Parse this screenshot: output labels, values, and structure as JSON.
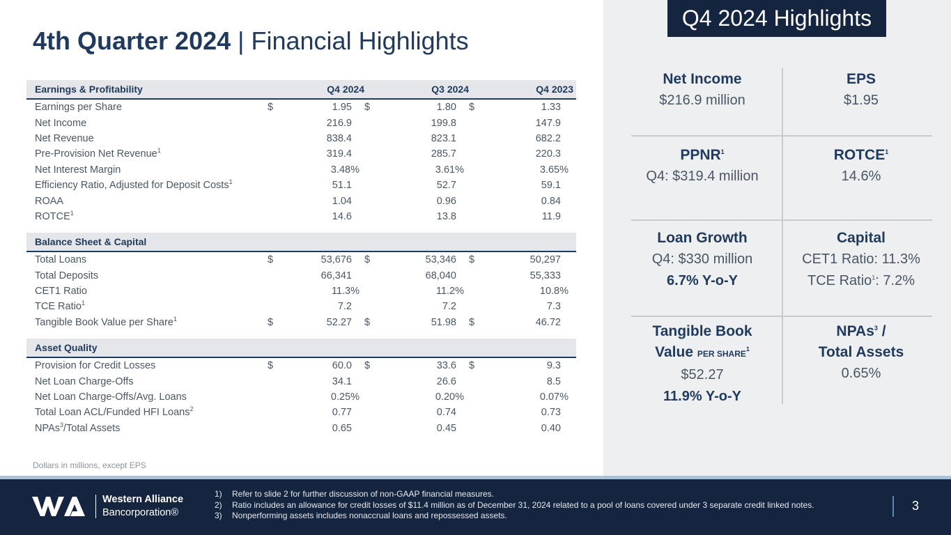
{
  "title": {
    "bold": "4th Quarter 2024",
    "sep": " | ",
    "rest": "Financial Highlights"
  },
  "table": {
    "columns": [
      "Q4 2024",
      "Q3 2024",
      "Q4 2023"
    ],
    "sections": [
      {
        "name": "Earnings & Profitability",
        "rows": [
          {
            "label": "Earnings per Share",
            "sup": "",
            "cur": true,
            "values": [
              "1.95",
              "1.80",
              "1.33"
            ]
          },
          {
            "label": "Net Income",
            "sup": "",
            "cur": false,
            "values": [
              "216.9",
              "199.8",
              "147.9"
            ]
          },
          {
            "label": "Net Revenue",
            "sup": "",
            "cur": false,
            "values": [
              "838.4",
              "823.1",
              "682.2"
            ]
          },
          {
            "label": "Pre-Provision Net Revenue",
            "sup": "1",
            "cur": false,
            "values": [
              "319.4",
              "285.7",
              "220.3"
            ]
          },
          {
            "label": "Net Interest Margin",
            "sup": "",
            "cur": false,
            "values": [
              "3.48%",
              "3.61%",
              "3.65%"
            ],
            "pct": true
          },
          {
            "label": "Efficiency Ratio, Adjusted for Deposit Costs",
            "sup": "1",
            "cur": false,
            "values": [
              "51.1",
              "52.7",
              "59.1"
            ]
          },
          {
            "label": "ROAA",
            "sup": "",
            "cur": false,
            "values": [
              "1.04",
              "0.96",
              "0.84"
            ]
          },
          {
            "label": "ROTCE",
            "sup": "1",
            "cur": false,
            "values": [
              "14.6",
              "13.8",
              "11.9"
            ]
          }
        ]
      },
      {
        "name": "Balance Sheet & Capital",
        "rows": [
          {
            "label": "Total Loans",
            "sup": "",
            "cur": true,
            "values": [
              "53,676",
              "53,346",
              "50,297"
            ]
          },
          {
            "label": "Total Deposits",
            "sup": "",
            "cur": false,
            "values": [
              "66,341",
              "68,040",
              "55,333"
            ]
          },
          {
            "label": "CET1 Ratio",
            "sup": "",
            "cur": false,
            "values": [
              "11.3%",
              "11.2%",
              "10.8%"
            ],
            "pct": true
          },
          {
            "label": "TCE Ratio",
            "sup": "1",
            "cur": false,
            "values": [
              "7.2",
              "7.2",
              "7.3"
            ]
          },
          {
            "label": "Tangible Book Value per Share",
            "sup": "1",
            "cur": true,
            "values": [
              "52.27",
              "51.98",
              "46.72"
            ]
          }
        ]
      },
      {
        "name": "Asset Quality",
        "rows": [
          {
            "label": "Provision for Credit Losses",
            "sup": "",
            "cur": true,
            "values": [
              "60.0",
              "33.6",
              "9.3"
            ]
          },
          {
            "label": "Net Loan Charge-Offs",
            "sup": "",
            "cur": false,
            "values": [
              "34.1",
              "26.6",
              "8.5"
            ]
          },
          {
            "label": "Net Loan Charge-Offs/Avg. Loans",
            "sup": "",
            "cur": false,
            "values": [
              "0.25%",
              "0.20%",
              "0.07%"
            ],
            "pct": true
          },
          {
            "label": "Total Loan ACL/Funded HFI Loans",
            "sup": "2",
            "cur": false,
            "values": [
              "0.77",
              "0.74",
              "0.73"
            ]
          },
          {
            "label": "NPAs",
            "sup": "3",
            "suffix": "/Total Assets",
            "cur": false,
            "values": [
              "0.65",
              "0.45",
              "0.40"
            ]
          }
        ]
      }
    ],
    "currency_symbol": "$",
    "note": "Dollars in millions, except EPS"
  },
  "highlights": {
    "title": "Q4 2024 Highlights",
    "net_income": {
      "heading": "Net Income",
      "value": "$216.9 million"
    },
    "eps": {
      "heading": "EPS",
      "value": "$1.95"
    },
    "ppnr": {
      "heading": "PPNR",
      "sup": "1",
      "value": "Q4: $319.4 million"
    },
    "rotce": {
      "heading": "ROTCE",
      "sup": "1",
      "value": "14.6%"
    },
    "loan_growth": {
      "heading": "Loan Growth",
      "value": "Q4: $330 million",
      "sub": "6.7%  Y-o-Y"
    },
    "capital": {
      "heading": "Capital",
      "value": "CET1 Ratio: 11.3%",
      "value2_a": "TCE Ratio",
      "value2_sup": "1",
      "value2_b": ": 7.2%"
    },
    "tbv": {
      "heading": "Tangible Book",
      "heading2": "Value",
      "heading2_small": "PER SHARE",
      "sup": "1",
      "value": "$52.27",
      "sub": "11.9%  Y-o-Y"
    },
    "npas": {
      "heading": "NPAs",
      "sup": "3",
      "heading_tail": " /",
      "heading2": "Total Assets",
      "value": "0.65%"
    }
  },
  "footer": {
    "company_line1": "Western Alliance",
    "company_line2": "Bancorporation®",
    "notes": [
      {
        "num": "1)",
        "text": "Refer to slide 2 for further discussion of non-GAAP financial measures."
      },
      {
        "num": "2)",
        "text": "Ratio includes an allowance for credit losses of $11.4 million as of December 31, 2024 related to a pool of loans covered under 3 separate credit linked notes."
      },
      {
        "num": "3)",
        "text": "Nonperforming assets includes nonaccrual loans and repossessed assets."
      }
    ],
    "page": "3"
  },
  "colors": {
    "navy": "#15253f",
    "title_blue": "#1f3a5c",
    "panel_bg": "#eeeff1",
    "accent_bar": "#a7c1d6"
  }
}
